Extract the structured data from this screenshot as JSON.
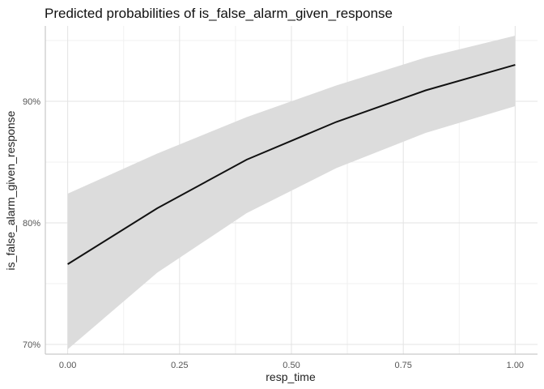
{
  "chart_data": {
    "type": "line",
    "title": "Predicted probabilities of is_false_alarm_given_response",
    "xlabel": "resp_time",
    "ylabel": "is_false_alarm_given_response",
    "x": [
      0.0,
      0.2,
      0.4,
      0.6,
      0.8,
      1.0
    ],
    "series": [
      {
        "values": [
          0.766,
          0.812,
          0.852,
          0.883,
          0.909,
          0.93
        ],
        "ci_low": [
          0.696,
          0.759,
          0.808,
          0.845,
          0.874,
          0.896
        ],
        "ci_high": [
          0.824,
          0.857,
          0.887,
          0.913,
          0.936,
          0.954
        ]
      }
    ],
    "xlim": [
      -0.05,
      1.05
    ],
    "ylim": [
      0.692,
      0.962
    ],
    "x_ticks": [
      {
        "value": 0.0,
        "label": "0.00"
      },
      {
        "value": 0.25,
        "label": "0.25"
      },
      {
        "value": 0.5,
        "label": "0.50"
      },
      {
        "value": 0.75,
        "label": "0.75"
      },
      {
        "value": 1.0,
        "label": "1.00"
      }
    ],
    "y_ticks": [
      {
        "value": 0.7,
        "label": "70%"
      },
      {
        "value": 0.8,
        "label": "80%"
      },
      {
        "value": 0.9,
        "label": "90%"
      }
    ],
    "grid": true,
    "legend": "none",
    "colors": {
      "line": "#111111",
      "band": "#dcdcdc",
      "grid": "#e3e3e3"
    }
  }
}
